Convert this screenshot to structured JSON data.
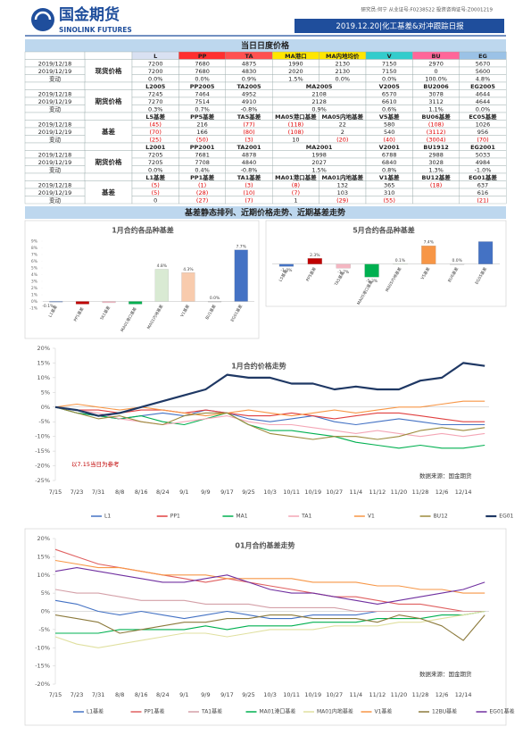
{
  "header": {
    "company": "国金期货",
    "company_en": "SINOLINK FUTURES",
    "analyst": "研究员:何宁 从业证号:F0238522 投资咨询证号:Z0001219",
    "report": "2019.12.20|化工基差&对冲跟踪日报"
  },
  "sections": [
    "当日日度价格",
    "基差静态排列、近期价格走势、近期基差走势"
  ],
  "table": {
    "header": [
      "L",
      "PP",
      "TA",
      "MA港口",
      "MA内地均价",
      "V",
      "BU",
      "EG"
    ],
    "header_colors": [
      "#d9e1f2",
      "#ff3030",
      "#ff5050",
      "#ffe600",
      "#ffe600",
      "#33cccc",
      "#ff6699",
      "#9bc2e6"
    ],
    "blocks": [
      {
        "label": "现货价格",
        "rows": [
          [
            "2019/12/18",
            "7200",
            "7680",
            "4875",
            "1990",
            "2130",
            "7150",
            "2970",
            "5670"
          ],
          [
            "2019/12/19",
            "7200",
            "7680",
            "4830",
            "2020",
            "2130",
            "7150",
            "0",
            "5600"
          ],
          [
            "变动",
            "0.0%",
            "0.0%",
            "0.9%",
            "1.5%",
            "0.0%",
            "0.0%",
            "100.0%",
            "4.8%"
          ]
        ]
      },
      {
        "label": "期货价格",
        "header": [
          "L2005",
          "PP2005",
          "TA2005",
          "MA2005",
          "V2005",
          "BU2006",
          "EG2005"
        ],
        "rows": [
          [
            "2019/12/18",
            "7245",
            "7464",
            "4952",
            "2108",
            "6570",
            "3078",
            "4644"
          ],
          [
            "2019/12/19",
            "7270",
            "7514",
            "4910",
            "2128",
            "6610",
            "3112",
            "4644"
          ],
          [
            "变动",
            "0.3%",
            "0.7%",
            "-0.8%",
            "0.9%",
            "0.6%",
            "1.1%",
            "0.0%"
          ]
        ]
      },
      {
        "label": "基差",
        "header": [
          "L5基差",
          "PP5基差",
          "TA5基差",
          "MA05港口基差",
          "MA05内地基差",
          "V5基差",
          "BU06基差",
          "EC05基差"
        ],
        "rows": [
          [
            "2019/12/18",
            "(45)",
            "216",
            "(77)",
            "(118)",
            "22",
            "580",
            "(108)",
            "1026"
          ],
          [
            "2019/12/19",
            "(70)",
            "166",
            "(80)",
            "(108)",
            "2",
            "540",
            "(3112)",
            "956"
          ],
          [
            "变动",
            "(25)",
            "(50)",
            "(3)",
            "10",
            "(20)",
            "(40)",
            "(3004)",
            "(70)"
          ]
        ]
      },
      {
        "label": "期货价格",
        "header": [
          "L2001",
          "PP2001",
          "TA2001",
          "MA2001",
          "V2001",
          "BU1912",
          "EG2001"
        ],
        "rows": [
          [
            "2019/12/18",
            "7205",
            "7681",
            "4878",
            "1998",
            "6788",
            "2988",
            "5033"
          ],
          [
            "2019/12/19",
            "7205",
            "7708",
            "4840",
            "2027",
            "6840",
            "3028",
            "4984"
          ],
          [
            "变动",
            "0.0%",
            "0.4%",
            "-0.8%",
            "1.5%",
            "0.8%",
            "1.3%",
            "-1.0%"
          ]
        ]
      },
      {
        "label": "基差",
        "header": [
          "L1基差",
          "PP1基差",
          "TA1基差",
          "MA01港口基差",
          "MA01内地基差",
          "V1基差",
          "BU12基差",
          "EG01基差"
        ],
        "rows": [
          [
            "2019/12/18",
            "(5)",
            "(1)",
            "(3)",
            "(8)",
            "132",
            "365",
            "(18)",
            "637"
          ],
          [
            "2019/12/19",
            "(5)",
            "(28)",
            "(10)",
            "(7)",
            "103",
            "310",
            null,
            "616"
          ],
          [
            "变动",
            "0",
            "(27)",
            "(7)",
            "1",
            "(29)",
            "(55)",
            null,
            "(21)"
          ]
        ]
      }
    ]
  },
  "chart_data": [
    {
      "type": "bar",
      "title": "1月合约各品种基差",
      "categories": [
        "L1基差",
        "PP1基差",
        "TA1基差",
        "MA01港口基差",
        "MA01内地基差",
        "V1基差",
        "BU1基差",
        "EG01基差"
      ],
      "values": [
        -0.1,
        -0.4,
        -0.2,
        -0.4,
        4.8,
        4.3,
        0.0,
        7.7
      ],
      "value_labels": [
        "-0.1%",
        null,
        null,
        null,
        "4.8%",
        "4.3%",
        "0.0%",
        "7.7%"
      ],
      "colors": [
        "#4472c4",
        "#c00000",
        "#f4b6c2",
        "#00b050",
        "#d9ead3",
        "#f8cbad",
        "#bfbfbf",
        "#4472c4"
      ],
      "ylim": [
        -1,
        9
      ],
      "yticks": [
        {
          "value": -1,
          "label": "-1%"
        },
        {
          "value": 0,
          "label": "0%"
        },
        {
          "value": 1,
          "label": "1%"
        },
        {
          "value": 2,
          "label": "2%"
        },
        {
          "value": 3,
          "label": "3%"
        },
        {
          "value": 4,
          "label": "4%"
        },
        {
          "value": 5,
          "label": "5%"
        },
        {
          "value": 6,
          "label": "6%"
        },
        {
          "value": 7,
          "label": "7%"
        },
        {
          "value": 8,
          "label": "8%"
        },
        {
          "value": 9,
          "label": "9%"
        }
      ]
    },
    {
      "type": "bar",
      "title": "5月合约各品种基差",
      "categories": [
        "L5基差",
        "PP5基差",
        "TA5基差",
        "MA05港口基差",
        "MA05内地基差",
        "V5基差",
        "BU6基差",
        "EG05基差"
      ],
      "values": [
        -1.0,
        2.3,
        -1.7,
        -5.3,
        0.1,
        7.4,
        0.0,
        9.1
      ],
      "value_labels": [
        "-1.0%",
        "2.3%",
        "-1.7%",
        "-5.3%",
        "0.1%",
        "7.4%",
        "0.0%",
        null
      ],
      "colors": [
        "#4472c4",
        "#c00000",
        "#f4b6c2",
        "#00b050",
        "#d9ead3",
        "#f79646",
        "#bfbfbf",
        "#4472c4"
      ],
      "ylim": [
        -7,
        10
      ]
    },
    {
      "type": "line",
      "title": "1月合约价格走势",
      "annotations": [
        "以7.15当日为参考",
        "数据来源：国金期货"
      ],
      "categories": [
        "7/15",
        "7/23",
        "7/31",
        "8/8",
        "8/16",
        "8/24",
        "9/1",
        "9/9",
        "9/17",
        "9/25",
        "10/3",
        "10/11",
        "10/19",
        "10/27",
        "11/4",
        "11/12",
        "11/20",
        "11/28",
        "12/6",
        "12/14",
        null
      ],
      "ylim": [
        -25,
        20
      ],
      "yticks": [
        {
          "value": -25,
          "label": "-25%"
        },
        {
          "value": -20,
          "label": "-20%"
        },
        {
          "value": -15,
          "label": "-15%"
        },
        {
          "value": -10,
          "label": "-10%"
        },
        {
          "value": -5,
          "label": "-5%"
        },
        {
          "value": 0,
          "label": "0%"
        },
        {
          "value": 5,
          "label": "5%"
        },
        {
          "value": 10,
          "label": "10%"
        },
        {
          "value": 15,
          "label": "15%"
        },
        {
          "value": 20,
          "label": "20%"
        }
      ],
      "series": [
        {
          "name": "L1",
          "color": "#4472c4",
          "values": [
            0,
            -2,
            -3,
            -4,
            -3,
            -2,
            -3,
            -1,
            -2,
            -4,
            -5,
            -4,
            -3,
            -5,
            -6,
            -5,
            -4,
            -5,
            -6,
            -6,
            -6
          ]
        },
        {
          "name": "PP1",
          "color": "#e04040",
          "values": [
            0,
            -1,
            -1,
            -2,
            -1,
            -1,
            -2,
            -1,
            -2,
            -3,
            -3,
            -2,
            -3,
            -4,
            -3,
            -2,
            -2,
            -3,
            -4,
            -5,
            -5
          ]
        },
        {
          "name": "MA1",
          "color": "#00b050",
          "values": [
            0,
            -2,
            -3,
            -4,
            -3,
            -5,
            -6,
            -4,
            -2,
            -6,
            -8,
            -8,
            -9,
            -10,
            -12,
            -13,
            -14,
            -13,
            -14,
            -14,
            -13
          ]
        },
        {
          "name": "TA1",
          "color": "#f4a6b6",
          "values": [
            0,
            -1,
            -2,
            -4,
            -5,
            -6,
            -5,
            -4,
            -3,
            -5,
            -6,
            -6,
            -7,
            -8,
            -9,
            -8,
            -9,
            -10,
            -9,
            -10,
            -9
          ]
        },
        {
          "name": "V1",
          "color": "#f79646",
          "values": [
            0,
            1,
            0,
            -1,
            0,
            -1,
            -2,
            -3,
            -2,
            -1,
            -2,
            -3,
            -2,
            -1,
            -2,
            -1,
            0,
            0,
            1,
            2,
            2
          ]
        },
        {
          "name": "BU12",
          "color": "#9c8a3c",
          "values": [
            0,
            -2,
            -4,
            -3,
            -5,
            -6,
            -3,
            -2,
            -2,
            -6,
            -9,
            -10,
            -11,
            -10,
            -10,
            -11,
            -10,
            -8,
            -7,
            -8,
            -7
          ]
        },
        {
          "name": "EG01",
          "color": "#1f3864",
          "width": 2.2,
          "values": [
            0,
            -1,
            -3,
            -2,
            0,
            2,
            4,
            6,
            11,
            10,
            10,
            8,
            8,
            6,
            7,
            6,
            6,
            9,
            10,
            15,
            14
          ]
        }
      ]
    },
    {
      "type": "line",
      "title": "01月合约基差走势",
      "annotations": [
        "数据来源：国金期货"
      ],
      "categories": [
        "7/15",
        "7/23",
        "7/31",
        "8/8",
        "8/16",
        "8/24",
        "9/1",
        "9/9",
        "9/17",
        "9/25",
        "10/3",
        "10/11",
        "10/19",
        "10/27",
        "11/4",
        "11/12",
        "11/20",
        "11/28",
        "12/6",
        "12/14",
        null
      ],
      "ylim": [
        -20,
        20
      ],
      "yticks": [
        {
          "value": -20,
          "label": "-20%"
        },
        {
          "value": -15,
          "label": "-15%"
        },
        {
          "value": -10,
          "label": "-10%"
        },
        {
          "value": -5,
          "label": "-5%"
        },
        {
          "value": 0,
          "label": "0%"
        },
        {
          "value": 5,
          "label": "5%"
        },
        {
          "value": 10,
          "label": "10%"
        },
        {
          "value": 15,
          "label": "15%"
        },
        {
          "value": 20,
          "label": "20%"
        }
      ],
      "series": [
        {
          "name": "L1基差",
          "color": "#4472c4",
          "values": [
            3,
            2,
            0,
            -1,
            0,
            -1,
            -2,
            -1,
            0,
            -1,
            -2,
            -2,
            -1,
            -1,
            -1,
            0,
            0,
            0,
            0,
            0,
            0
          ]
        },
        {
          "name": "PP1基差",
          "color": "#e06060",
          "values": [
            17,
            15,
            13,
            12,
            11,
            10,
            9,
            8,
            9,
            8,
            7,
            6,
            5,
            4,
            4,
            3,
            2,
            2,
            1,
            0,
            0
          ]
        },
        {
          "name": "TA1基差",
          "color": "#d4a0a8",
          "values": [
            6,
            5,
            5,
            4,
            3,
            3,
            3,
            2,
            2,
            2,
            1,
            1,
            1,
            1,
            0,
            0,
            0,
            0,
            0,
            0,
            0
          ]
        },
        {
          "name": "MA01港口基差",
          "color": "#00b050",
          "values": [
            -6,
            -6,
            -6,
            -5,
            -5,
            -5,
            -5,
            -4,
            -5,
            -4,
            -4,
            -4,
            -3,
            -3,
            -3,
            -2,
            -2,
            -2,
            -1,
            -1,
            0
          ]
        },
        {
          "name": "MA01内地基差",
          "color": "#e0e0a0",
          "values": [
            -7,
            -9,
            -10,
            -9,
            -8,
            -7,
            -6,
            -6,
            -7,
            -6,
            -5,
            -5,
            -5,
            -4,
            -4,
            -4,
            -3,
            -3,
            -2,
            -1,
            0
          ]
        },
        {
          "name": "V1基差",
          "color": "#f79646",
          "values": [
            14,
            13,
            12,
            12,
            11,
            10,
            10,
            10,
            9,
            9,
            9,
            9,
            8,
            8,
            8,
            7,
            7,
            6,
            6,
            5,
            5
          ]
        },
        {
          "name": "12BU基差",
          "color": "#8c7a3c",
          "values": [
            -1,
            -2,
            -3,
            -6,
            -5,
            -4,
            -3,
            -3,
            -2,
            -2,
            -1,
            -1,
            -2,
            -2,
            -2,
            -3,
            -1,
            -2,
            -4,
            -8,
            -1
          ]
        },
        {
          "name": "EG01基差",
          "color": "#7030a0",
          "values": [
            11,
            12,
            11,
            10,
            9,
            8,
            8,
            9,
            10,
            8,
            6,
            5,
            5,
            4,
            3,
            2,
            3,
            4,
            5,
            6,
            8
          ]
        }
      ]
    }
  ]
}
